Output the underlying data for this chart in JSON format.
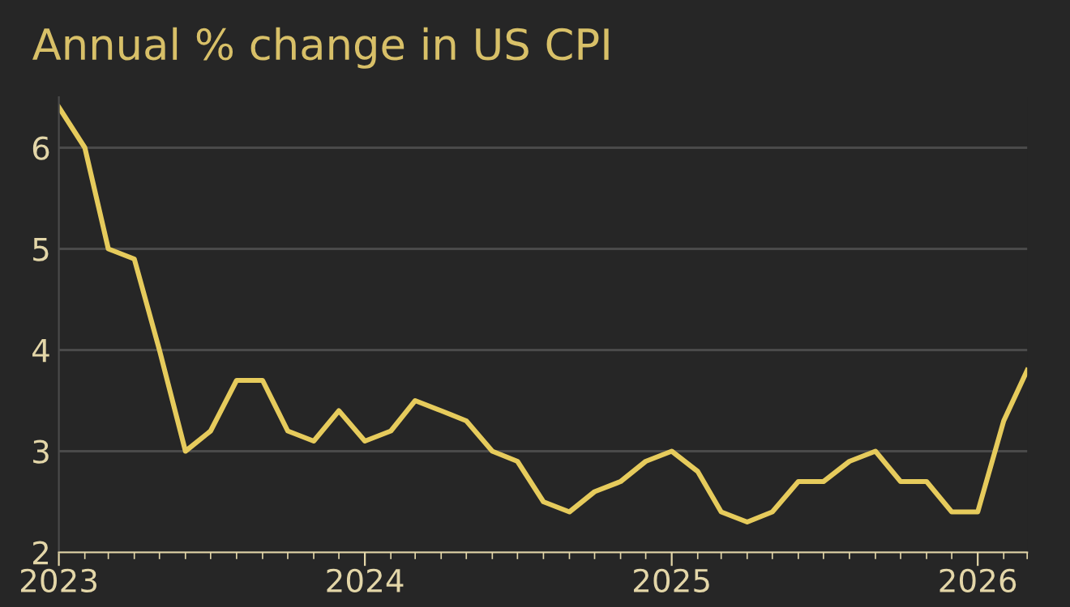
{
  "chart_data": {
    "type": "line",
    "title": "Annual % change in US CPI",
    "x": [
      "2023-01",
      "2023-02",
      "2023-03",
      "2023-04",
      "2023-05",
      "2023-06",
      "2023-07",
      "2023-08",
      "2023-09",
      "2023-10",
      "2023-11",
      "2023-12",
      "2024-01",
      "2024-02",
      "2024-03",
      "2024-04",
      "2024-05",
      "2024-06",
      "2024-07",
      "2024-08",
      "2024-09",
      "2024-10",
      "2024-11",
      "2024-12",
      "2025-01",
      "2025-02",
      "2025-03",
      "2025-04",
      "2025-05",
      "2025-06",
      "2025-07",
      "2025-08",
      "2025-09",
      "2025-10",
      "2025-11",
      "2025-12",
      "2026-01",
      "2026-02",
      "2026-03"
    ],
    "series": [
      {
        "color": "#e6cb5c",
        "values": [
          6.4,
          6.0,
          5.0,
          4.9,
          4.0,
          3.0,
          3.2,
          3.7,
          3.7,
          3.2,
          3.1,
          3.4,
          3.1,
          3.2,
          3.5,
          3.4,
          3.3,
          3.0,
          2.9,
          2.5,
          2.4,
          2.6,
          2.7,
          2.9,
          3.0,
          2.8,
          2.4,
          2.3,
          2.4,
          2.7,
          2.7,
          2.9,
          3.0,
          2.7,
          2.7,
          2.4,
          2.4,
          3.3,
          3.8
        ]
      }
    ],
    "xlim": [
      "2023-01",
      "2026-03"
    ],
    "xticks": [
      {
        "value": "2023-01",
        "label": "2023"
      },
      {
        "value": "2024-01",
        "label": "2024"
      },
      {
        "value": "2025-01",
        "label": "2025"
      },
      {
        "value": "2026-01",
        "label": "2026"
      }
    ],
    "ylim": [
      2,
      6.5
    ],
    "yticks": [
      2,
      3,
      4,
      5,
      6
    ],
    "grid": "y",
    "marker": "none",
    "line_style": "solid",
    "legend": false
  }
}
